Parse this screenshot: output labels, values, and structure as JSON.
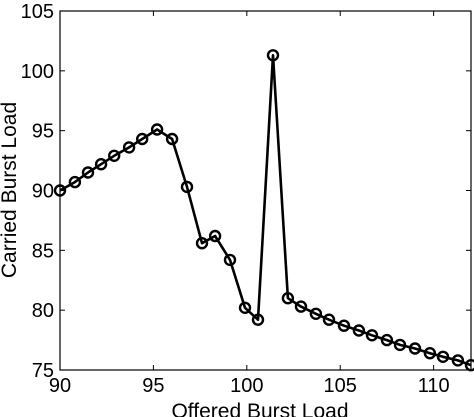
{
  "chart_data": {
    "type": "line",
    "title": "",
    "xlabel": "Offered Burst Load",
    "ylabel": "Carried Burst Load",
    "xlim": [
      90,
      112
    ],
    "ylim": [
      75,
      105
    ],
    "xticks": [
      90,
      95,
      100,
      105,
      110
    ],
    "yticks": [
      75,
      80,
      85,
      90,
      95,
      100,
      105
    ],
    "grid": false,
    "legend": "none",
    "marker": "circle",
    "line_color": "#000000",
    "series": [
      {
        "x": [
          90.0,
          90.8,
          91.5,
          92.2,
          92.9,
          93.7,
          94.4,
          95.2,
          96.0,
          96.8,
          97.6,
          98.3,
          99.1,
          99.9,
          100.6,
          101.4,
          102.2,
          102.9,
          103.7,
          104.4,
          105.2,
          106.0,
          106.7,
          107.5,
          108.2,
          109.0,
          109.8,
          110.5,
          111.3,
          112.0
        ],
        "y": [
          90.0,
          90.7,
          91.5,
          92.2,
          92.9,
          93.6,
          94.3,
          95.1,
          94.3,
          90.3,
          85.6,
          86.2,
          84.2,
          80.2,
          79.2,
          101.3,
          81.0,
          80.3,
          79.7,
          79.2,
          78.7,
          78.3,
          77.9,
          77.5,
          77.1,
          76.8,
          76.4,
          76.1,
          75.8,
          75.4
        ]
      }
    ]
  }
}
